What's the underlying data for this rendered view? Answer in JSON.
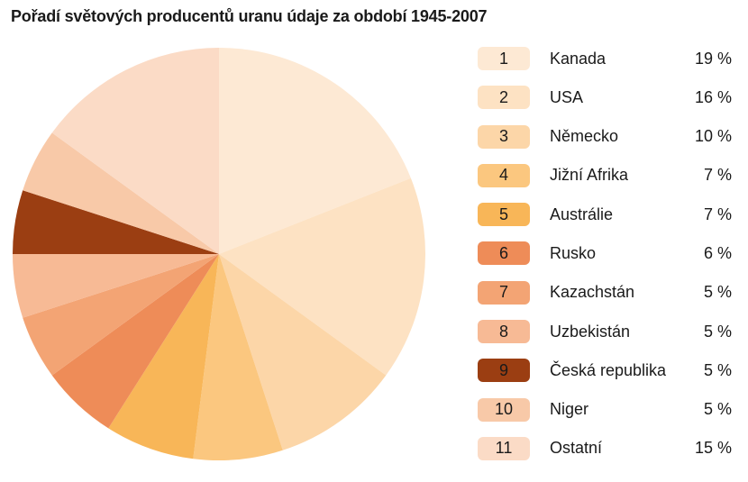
{
  "chart_data": {
    "type": "pie",
    "title": "Pořadí světových producentů uranu údaje za období 1945-2007",
    "categories": [
      "Kanada",
      "USA",
      "Německo",
      "Jižní Afrika",
      "Austrálie",
      "Rusko",
      "Kazachstán",
      "Uzbekistán",
      "Česká republika",
      "Niger",
      "Ostatní"
    ],
    "ranks": [
      "1",
      "2",
      "3",
      "4",
      "5",
      "6",
      "7",
      "8",
      "9",
      "10",
      "11"
    ],
    "values": [
      19,
      16,
      10,
      7,
      7,
      6,
      5,
      5,
      5,
      5,
      15
    ],
    "value_labels": [
      "19 %",
      "16 %",
      "10 %",
      "7 %",
      "7 %",
      "6 %",
      "5 %",
      "5 %",
      "5 %",
      "5 %",
      "15 %"
    ],
    "colors": [
      "#fde9d4",
      "#fde2c3",
      "#fcd6a8",
      "#fbc77f",
      "#f8b658",
      "#ee8c58",
      "#f3a474",
      "#f7ba95",
      "#9b3e12",
      "#f8c9a8",
      "#fbdbc6"
    ],
    "legend_position": "right",
    "start_angle_deg": 0,
    "direction": "clockwise"
  }
}
